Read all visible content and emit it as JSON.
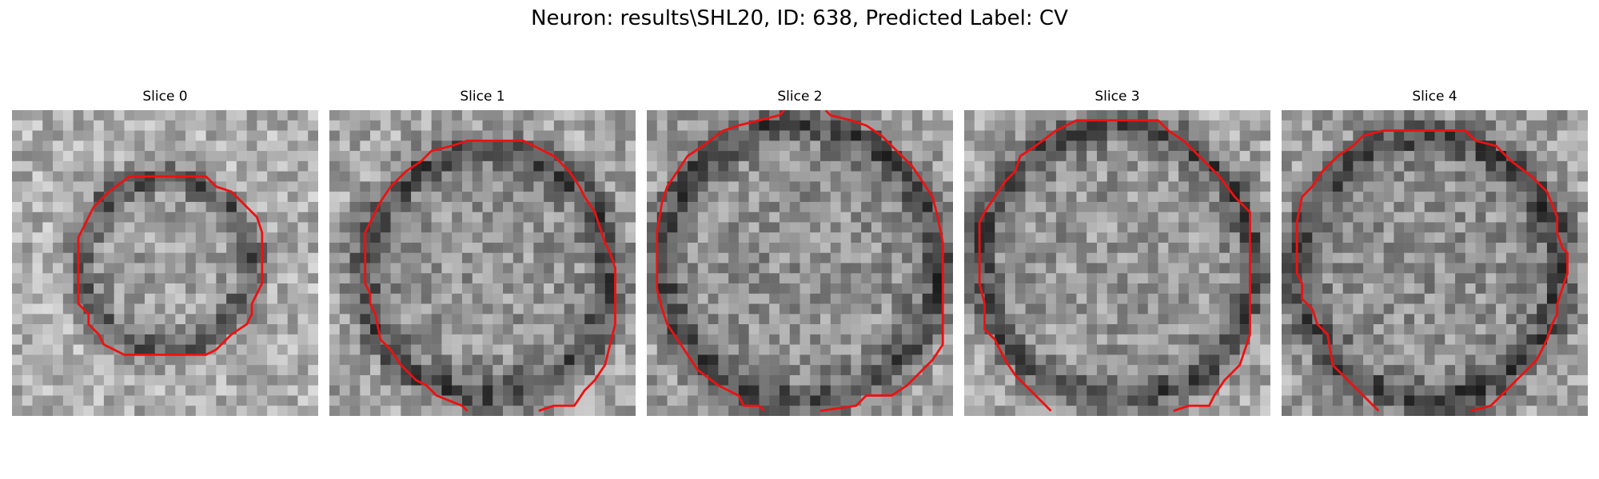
{
  "figure": {
    "title": "Neuron: results\\SHL20, ID: 638, Predicted Label: CV"
  },
  "colors": {
    "contour": "#ee1111",
    "background": "#ffffff"
  },
  "panels": [
    {
      "title": "Slice 0",
      "image": "grayscale EM patch with small round membrane ring",
      "seed": 11,
      "contour": "closed"
    },
    {
      "title": "Slice 1",
      "image": "grayscale EM patch with larger round membrane",
      "seed": 23,
      "contour": "open-bottom"
    },
    {
      "title": "Slice 2",
      "image": "grayscale EM patch with large round membrane",
      "seed": 37,
      "contour": "open-top-bottom"
    },
    {
      "title": "Slice 3",
      "image": "grayscale EM patch with large round membrane",
      "seed": 51,
      "contour": "open-bottom"
    },
    {
      "title": "Slice 4",
      "image": "grayscale EM patch with large round membrane",
      "seed": 67,
      "contour": "open-bottom"
    }
  ]
}
